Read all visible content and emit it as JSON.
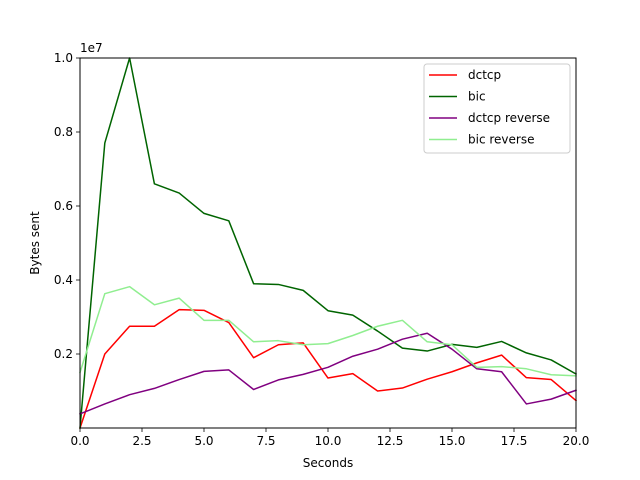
{
  "chart_data": {
    "type": "line",
    "xlabel": "Seconds",
    "ylabel": "Bytes sent",
    "y_multiplier_label": "1e7",
    "xlim": [
      0,
      20
    ],
    "ylim": [
      0,
      1.0
    ],
    "xticks": [
      0,
      2.5,
      5,
      7.5,
      10,
      12.5,
      15,
      17.5,
      20
    ],
    "xtick_labels": [
      "0.0",
      "2.5",
      "5.0",
      "7.5",
      "10.0",
      "12.5",
      "15.0",
      "17.5",
      "20.0"
    ],
    "yticks": [
      0.2,
      0.4,
      0.6,
      0.8,
      1.0
    ],
    "ytick_labels": [
      "0.2",
      "0.4",
      "0.6",
      "0.8",
      "1.0"
    ],
    "grid": false,
    "legend_position": "top-right",
    "x": [
      0,
      1,
      2,
      3,
      4,
      5,
      6,
      7,
      8,
      9,
      10,
      11,
      12,
      13,
      14,
      15,
      16,
      17,
      18,
      19,
      20
    ],
    "series": [
      {
        "name": "dctcp",
        "color": "#ff0000",
        "values": [
          0.0,
          0.2,
          0.275,
          0.275,
          0.32,
          0.318,
          0.285,
          0.19,
          0.225,
          0.23,
          0.135,
          0.147,
          0.1,
          0.108,
          0.132,
          0.152,
          0.176,
          0.197,
          0.136,
          0.131,
          0.074
        ]
      },
      {
        "name": "bic",
        "color": "#006400",
        "values": [
          0.0,
          0.77,
          1.0,
          0.66,
          0.635,
          0.58,
          0.56,
          0.39,
          0.388,
          0.372,
          0.317,
          0.305,
          0.262,
          0.216,
          0.208,
          0.226,
          0.218,
          0.234,
          0.203,
          0.184,
          0.146
        ]
      },
      {
        "name": "dctcp reverse",
        "color": "#800080",
        "values": [
          0.038,
          0.065,
          0.09,
          0.107,
          0.131,
          0.153,
          0.157,
          0.104,
          0.13,
          0.145,
          0.164,
          0.194,
          0.213,
          0.24,
          0.256,
          0.213,
          0.16,
          0.152,
          0.065,
          0.078,
          0.102
        ]
      },
      {
        "name": "bic reverse",
        "color": "#90ee90",
        "values": [
          0.15,
          0.363,
          0.382,
          0.333,
          0.351,
          0.291,
          0.291,
          0.233,
          0.236,
          0.225,
          0.228,
          0.25,
          0.275,
          0.291,
          0.233,
          0.225,
          0.164,
          0.166,
          0.16,
          0.144,
          0.141
        ]
      }
    ]
  }
}
